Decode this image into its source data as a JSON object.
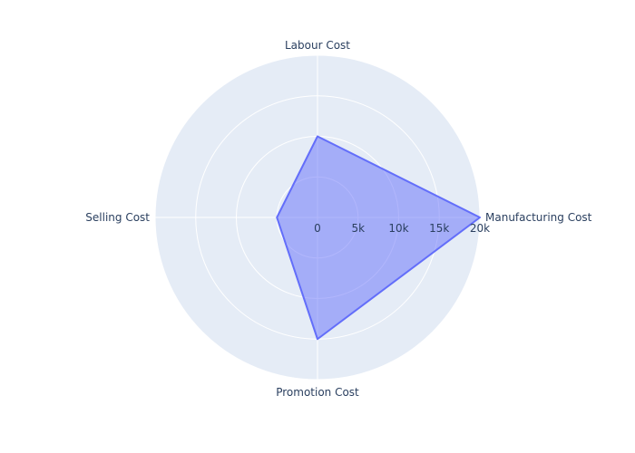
{
  "chart_data": {
    "type": "radar",
    "axes": [
      "Manufacturing Cost",
      "Labour Cost",
      "Selling Cost",
      "Promotion Cost"
    ],
    "series": [
      {
        "values": [
          20000,
          10000,
          5000,
          15000
        ]
      }
    ],
    "radial_range": [
      0,
      20000
    ],
    "radial_ticks": [
      0,
      5000,
      10000,
      15000,
      20000
    ],
    "radial_tick_labels": [
      "0",
      "5k",
      "10k",
      "15k",
      "20k"
    ],
    "colors": {
      "background": "#e5ecf6",
      "grid": "#ffffff",
      "series_line": "#636efa",
      "series_fill": "rgba(99,110,250,0.5)",
      "text": "#2a3f5f"
    }
  }
}
